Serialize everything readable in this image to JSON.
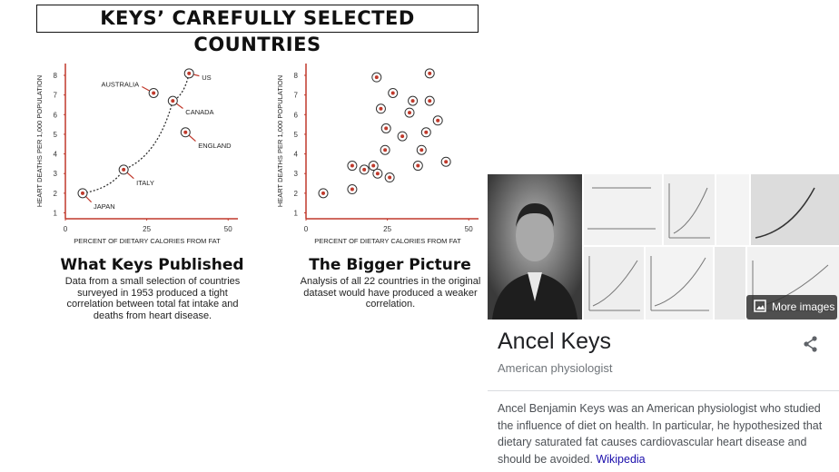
{
  "infographic": {
    "title": "KEYS’ CAREFULLY SELECTED COUNTRIES"
  },
  "chart_data": [
    {
      "type": "scatter",
      "title": "What Keys Published",
      "subtitle": "Data from a small selection of countries surveyed in 1953 produced a tight correlation between total fat intake and deaths from heart disease.",
      "x_label": "PERCENT OF DIETARY CALORIES FROM FAT",
      "y_label": "HEART DEATHS PER 1,000 POPULATION",
      "labels": [
        "JAPAN",
        "ITALY",
        "AUSTRALIA",
        "CANADA",
        "ENGLAND",
        "US"
      ],
      "x": [
        5.3,
        17.9,
        27.1,
        33,
        36.9,
        38
      ],
      "y": [
        2.0,
        3.2,
        7.1,
        6.7,
        5.1,
        8.1
      ],
      "xlim": [
        0,
        53
      ],
      "ylim": [
        0.7,
        8.6
      ],
      "xticks": [
        0,
        25,
        50
      ],
      "yticks": [
        1,
        2,
        3,
        4,
        5,
        6,
        7,
        8
      ],
      "color": "#c0392b"
    },
    {
      "type": "scatter",
      "title": "The Bigger Picture",
      "subtitle": "Analysis of all 22 countries in the original dataset would have produced a weaker correlation.",
      "x_label": "PERCENT OF DIETARY CALORIES FROM FAT",
      "y_label": "HEART DEATHS PER 1,000 POPULATION",
      "x": [
        21.7,
        38,
        26.7,
        32.8,
        38,
        23,
        31.8,
        40.5,
        24.6,
        29.6,
        36.9,
        24.3,
        35.5,
        14.2,
        17.9,
        20.7,
        22,
        25.7,
        34.4,
        43,
        14.2,
        5.3
      ],
      "y": [
        7.9,
        8.1,
        7.1,
        6.7,
        6.7,
        6.3,
        6.1,
        5.7,
        5.3,
        4.9,
        5.1,
        4.2,
        4.2,
        3.4,
        3.2,
        3.4,
        3.0,
        2.8,
        3.4,
        3.6,
        2.2,
        2.0
      ],
      "xlim": [
        0,
        53
      ],
      "ylim": [
        0.7,
        8.6
      ],
      "xticks": [
        0,
        25,
        50
      ],
      "yticks": [
        1,
        2,
        3,
        4,
        5,
        6,
        7,
        8
      ],
      "color": "#c0392b"
    }
  ],
  "knowledge_panel": {
    "more_images": "More images",
    "name": "Ancel Keys",
    "subtitle": "American physiologist",
    "description": "Ancel Benjamin Keys was an American physiologist who studied the influence of diet on health. In particular, he hypothesized that dietary saturated fat causes cardiovascular heart disease and should be avoided.",
    "source": "Wikipedia"
  }
}
